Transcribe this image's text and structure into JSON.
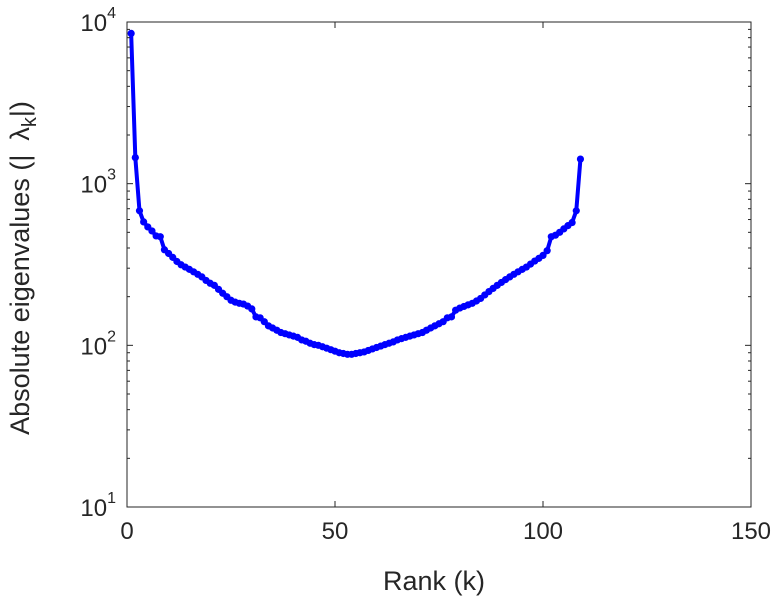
{
  "chart_data": {
    "type": "line",
    "title": "",
    "xlabel": "Rank (k)",
    "ylabel_parts": [
      "Absolute eigenvalues (|",
      "λ",
      "k",
      "|)"
    ],
    "xlim": [
      0,
      150
    ],
    "ylim": [
      10,
      10000
    ],
    "y_scale": "log",
    "grid": false,
    "x_ticks": [
      "0",
      "50",
      "100",
      "150"
    ],
    "y_ticks": [
      {
        "base": "10",
        "exp": "1"
      },
      {
        "base": "10",
        "exp": "2"
      },
      {
        "base": "10",
        "exp": "3"
      },
      {
        "base": "10",
        "exp": "4"
      }
    ],
    "series": [
      {
        "color": "#0000ff",
        "marker": "circle",
        "x": [
          1,
          2,
          3,
          4,
          5,
          6,
          7,
          8,
          9,
          10,
          11,
          12,
          13,
          14,
          15,
          16,
          17,
          18,
          19,
          20,
          21,
          22,
          23,
          24,
          25,
          26,
          27,
          28,
          29,
          30,
          31,
          32,
          33,
          34,
          35,
          36,
          37,
          38,
          39,
          40,
          41,
          42,
          43,
          44,
          45,
          46,
          47,
          48,
          49,
          50,
          51,
          52,
          53,
          54,
          55,
          56,
          57,
          58,
          59,
          60,
          61,
          62,
          63,
          64,
          65,
          66,
          67,
          68,
          69,
          70,
          71,
          72,
          73,
          74,
          75,
          76,
          77,
          78,
          79,
          80,
          81,
          82,
          83,
          84,
          85,
          86,
          87,
          88,
          89,
          90,
          91,
          92,
          93,
          94,
          95,
          96,
          97,
          98,
          99,
          100,
          101,
          102,
          103,
          104,
          105,
          106,
          107,
          108,
          109
        ],
        "y": [
          8500,
          1450,
          680,
          580,
          540,
          510,
          475,
          470,
          390,
          370,
          350,
          330,
          315,
          305,
          295,
          285,
          275,
          265,
          252,
          242,
          235,
          222,
          210,
          200,
          190,
          185,
          182,
          180,
          175,
          168,
          150,
          148,
          140,
          132,
          128,
          124,
          120,
          118,
          116,
          114,
          112,
          108,
          106,
          103,
          101,
          100,
          98,
          96,
          94,
          92,
          90,
          89,
          88,
          88,
          89,
          90,
          91,
          93,
          95,
          97,
          99,
          101,
          103,
          105,
          108,
          110,
          112,
          114,
          116,
          118,
          120,
          124,
          128,
          132,
          136,
          140,
          148,
          150,
          165,
          170,
          174,
          178,
          182,
          188,
          195,
          205,
          215,
          225,
          235,
          245,
          255,
          265,
          275,
          285,
          295,
          305,
          318,
          332,
          345,
          360,
          385,
          470,
          480,
          500,
          525,
          550,
          575,
          680,
          1420
        ]
      }
    ]
  }
}
